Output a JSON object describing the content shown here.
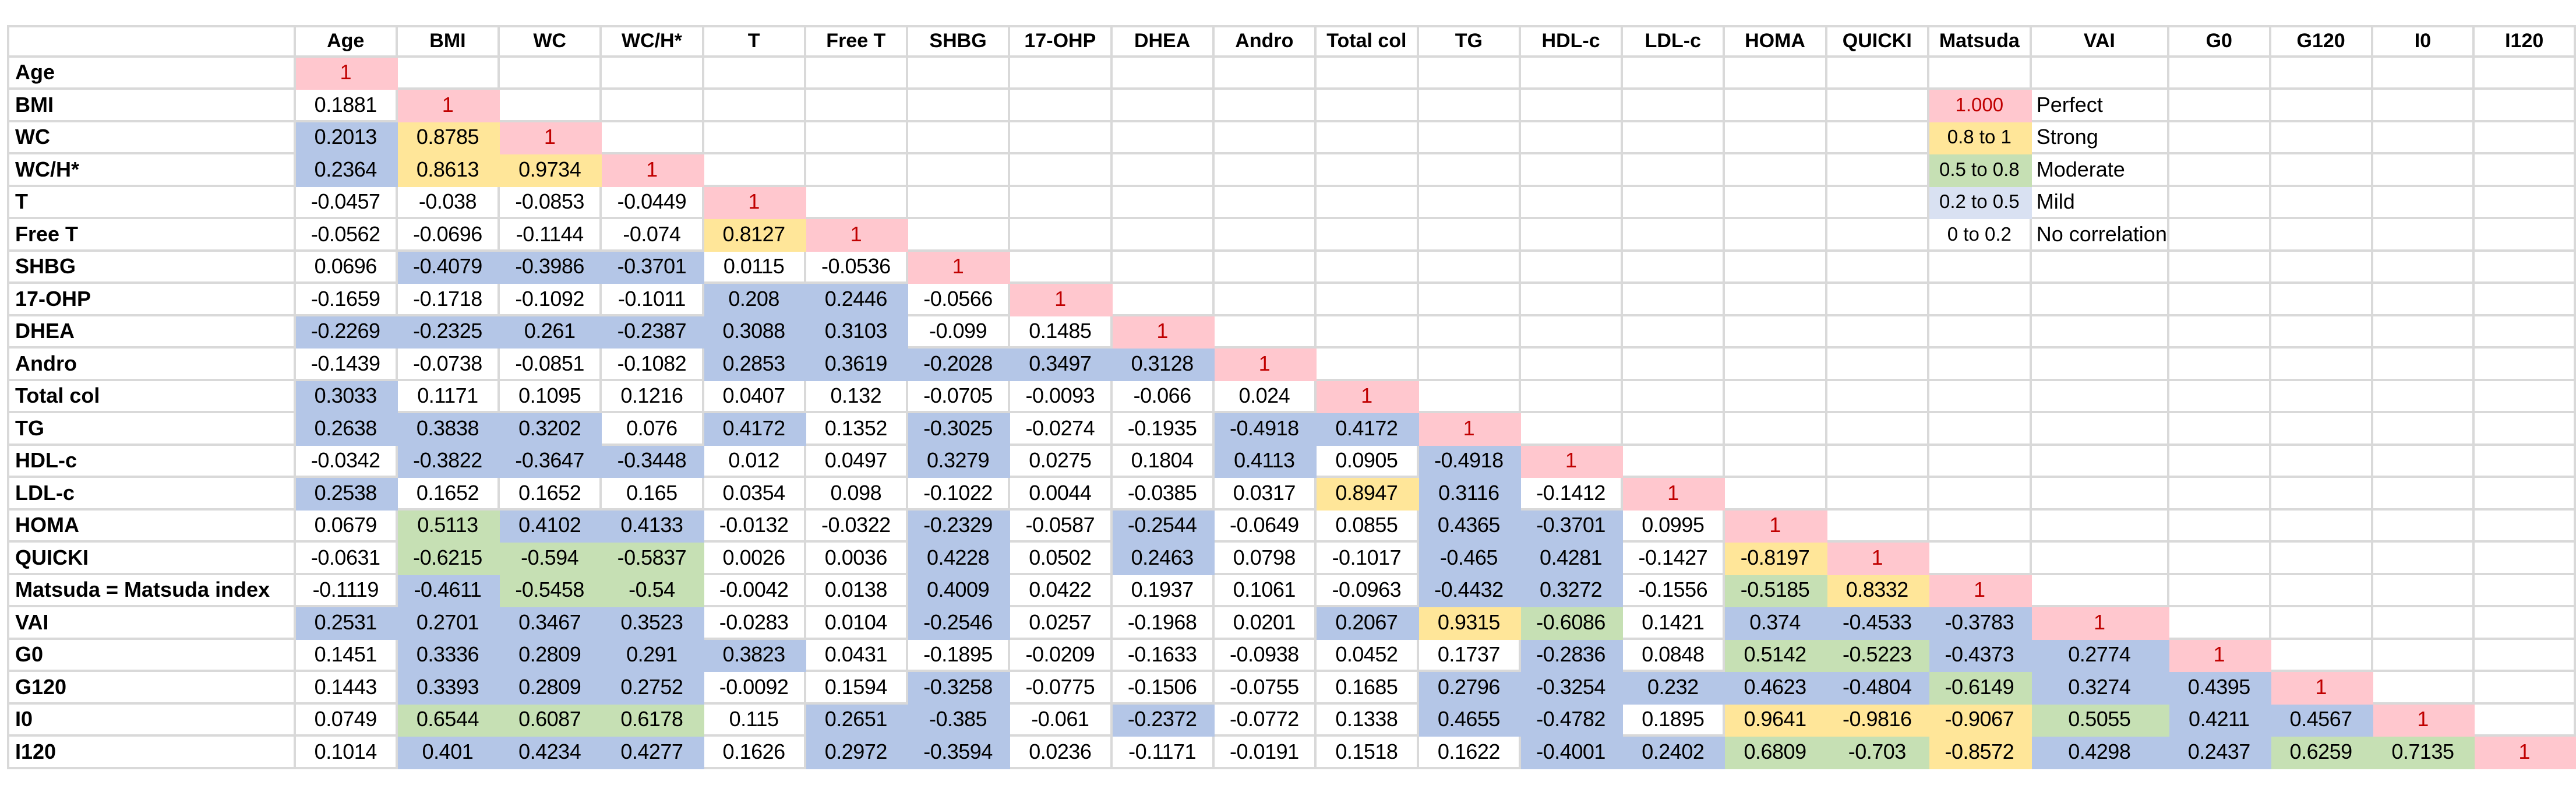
{
  "palette": {
    "perfect": "#FFC7CE",
    "strong": "#FFE699",
    "moderate": "#C6E0B4",
    "mild": "#B4C6E7",
    "none": "#FFFFFF",
    "diagonal_text": "#C00000",
    "gridline": "#D9D9D9",
    "text": "#000000"
  },
  "legend": {
    "range_column": "Matsuda",
    "label_column": "VAI",
    "entries": [
      {
        "range": "1.000",
        "label": "Perfect",
        "color": "#FFC7CE",
        "text_color": "#C00000"
      },
      {
        "range": "0.8 to 1",
        "label": "Strong",
        "color": "#FFE699",
        "text_color": "#000000"
      },
      {
        "range": "0.5 to 0.8",
        "label": "Moderate",
        "color": "#C6E0B4",
        "text_color": "#000000"
      },
      {
        "range": "0.2 to 0.5",
        "label": "Mild",
        "color": "#D9E1F2",
        "text_color": "#000000"
      },
      {
        "range": "0 to 0.2",
        "label": "No correlation",
        "color": "#FFFFFF",
        "text_color": "#000000"
      }
    ]
  },
  "chart_data": {
    "type": "heatmap",
    "title": "",
    "corner_label": "",
    "legend_range_col_index": 16,
    "legend_label_col_index": 17,
    "legend_start_row_index": 1,
    "color_rule": "fill by |r|: 1 perfect(pink), >=0.8 strong(yellow), >=0.5 moderate(green), >=0.2 mild(blue), else none(white)",
    "variables": [
      "Age",
      "BMI",
      "WC",
      "WC/H*",
      "T",
      "Free T",
      "SHBG",
      "17-OHP",
      "DHEA",
      "Andro",
      "Total col",
      "TG",
      "HDL-c",
      "LDL-c",
      "HOMA",
      "QUICKI",
      "Matsuda",
      "VAI",
      "G0",
      "G120",
      "I0",
      "I120"
    ],
    "row_labels": [
      "Age",
      "BMI",
      "WC",
      "WC/H*",
      "T",
      "Free T",
      "SHBG",
      "17-OHP",
      "DHEA",
      "Andro",
      "Total col",
      "TG",
      "HDL-c",
      "LDL-c",
      "HOMA",
      "QUICKI",
      "Matsuda = Matsuda index",
      "VAI",
      "G0",
      "G120",
      "I0",
      "I120"
    ],
    "matrix": [
      [
        1
      ],
      [
        0.1881,
        1
      ],
      [
        0.2013,
        0.8785,
        1
      ],
      [
        0.2364,
        0.8613,
        0.9734,
        1
      ],
      [
        -0.0457,
        -0.038,
        -0.0853,
        -0.0449,
        1
      ],
      [
        -0.0562,
        -0.0696,
        -0.1144,
        -0.074,
        0.8127,
        1
      ],
      [
        0.0696,
        -0.4079,
        -0.3986,
        -0.3701,
        0.0115,
        -0.0536,
        1
      ],
      [
        -0.1659,
        -0.1718,
        -0.1092,
        -0.1011,
        0.208,
        0.2446,
        -0.0566,
        1
      ],
      [
        -0.2269,
        -0.2325,
        0.261,
        -0.2387,
        0.3088,
        0.3103,
        -0.099,
        0.1485,
        1
      ],
      [
        -0.1439,
        -0.0738,
        -0.0851,
        -0.1082,
        0.2853,
        0.3619,
        -0.2028,
        0.3497,
        0.3128,
        1
      ],
      [
        0.3033,
        0.1171,
        0.1095,
        0.1216,
        0.0407,
        0.132,
        -0.0705,
        -0.0093,
        -0.066,
        0.024,
        1
      ],
      [
        0.2638,
        0.3838,
        0.3202,
        0.076,
        0.4172,
        0.1352,
        -0.3025,
        -0.0274,
        -0.1935,
        -0.4918,
        0.4172,
        1
      ],
      [
        -0.0342,
        -0.3822,
        -0.3647,
        -0.3448,
        0.012,
        0.0497,
        0.3279,
        0.0275,
        0.1804,
        0.4113,
        0.0905,
        -0.4918,
        1
      ],
      [
        0.2538,
        0.1652,
        0.1652,
        0.165,
        0.0354,
        0.098,
        -0.1022,
        0.0044,
        -0.0385,
        0.0317,
        0.8947,
        0.3116,
        -0.1412,
        1
      ],
      [
        0.0679,
        0.5113,
        0.4102,
        0.4133,
        -0.0132,
        -0.0322,
        -0.2329,
        -0.0587,
        -0.2544,
        -0.0649,
        0.0855,
        0.4365,
        -0.3701,
        0.0995,
        1
      ],
      [
        -0.0631,
        -0.6215,
        -0.594,
        -0.5837,
        0.0026,
        0.0036,
        0.4228,
        0.0502,
        0.2463,
        0.0798,
        -0.1017,
        -0.465,
        0.4281,
        -0.1427,
        -0.8197,
        1
      ],
      [
        -0.1119,
        -0.4611,
        -0.5458,
        -0.54,
        -0.0042,
        0.0138,
        0.4009,
        0.0422,
        0.1937,
        0.1061,
        -0.0963,
        -0.4432,
        0.3272,
        -0.1556,
        -0.5185,
        0.8332,
        1
      ],
      [
        0.2531,
        0.2701,
        0.3467,
        0.3523,
        -0.0283,
        0.0104,
        -0.2546,
        0.0257,
        -0.1968,
        0.0201,
        0.2067,
        0.9315,
        -0.6086,
        0.1421,
        0.374,
        -0.4533,
        -0.3783,
        1
      ],
      [
        0.1451,
        0.3336,
        0.2809,
        0.291,
        0.3823,
        0.0431,
        -0.1895,
        -0.0209,
        -0.1633,
        -0.0938,
        0.0452,
        0.1737,
        -0.2836,
        0.0848,
        0.5142,
        -0.5223,
        -0.4373,
        0.2774,
        1
      ],
      [
        0.1443,
        0.3393,
        0.2809,
        0.2752,
        -0.0092,
        0.1594,
        -0.3258,
        -0.0775,
        -0.1506,
        -0.0755,
        0.1685,
        0.2796,
        -0.3254,
        0.232,
        0.4623,
        -0.4804,
        -0.6149,
        0.3274,
        0.4395,
        1
      ],
      [
        0.0749,
        0.6544,
        0.6087,
        0.6178,
        0.115,
        0.2651,
        -0.385,
        -0.061,
        -0.2372,
        -0.0772,
        0.1338,
        0.4655,
        -0.4782,
        0.1895,
        0.9641,
        -0.9816,
        -0.9067,
        0.5055,
        0.4211,
        0.4567,
        1
      ],
      [
        0.1014,
        0.401,
        0.4234,
        0.4277,
        0.1626,
        0.2972,
        -0.3594,
        0.0236,
        -0.1171,
        -0.0191,
        0.1518,
        0.1622,
        -0.4001,
        0.2402,
        0.6809,
        -0.703,
        -0.8572,
        0.4298,
        0.2437,
        0.6259,
        0.7135,
        1
      ]
    ]
  }
}
